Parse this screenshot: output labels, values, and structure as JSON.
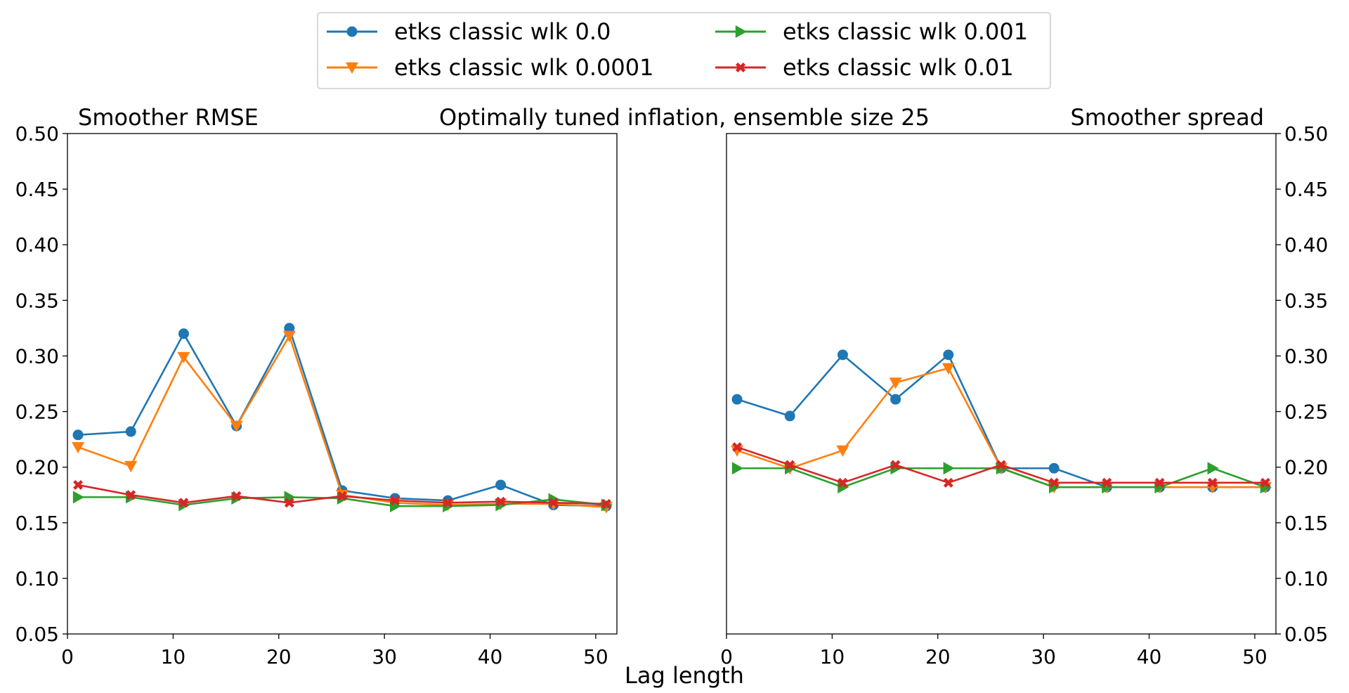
{
  "figure": {
    "suptitle": "Optimally tuned inflation, ensemble size 25",
    "xlabel": "Lag length"
  },
  "legend": {
    "placement": "top-center",
    "entries": [
      {
        "label": "etks classic wlk 0.0",
        "color": "#1f77b4",
        "marker": "circle"
      },
      {
        "label": "etks classic wlk 0.0001",
        "color": "#ff7f0e",
        "marker": "triangle-down"
      },
      {
        "label": "etks classic wlk 0.001",
        "color": "#2ca02c",
        "marker": "triangle-right"
      },
      {
        "label": "etks classic wlk 0.01",
        "color": "#d62728",
        "marker": "x"
      }
    ]
  },
  "chart_data": [
    {
      "type": "line",
      "title": "Smoother RMSE",
      "xlim": [
        0,
        52
      ],
      "ylim": [
        0.05,
        0.5
      ],
      "xticks": [
        0,
        10,
        20,
        30,
        40,
        50
      ],
      "yticks": [
        "0.05",
        "0.10",
        "0.15",
        "0.20",
        "0.25",
        "0.30",
        "0.35",
        "0.40",
        "0.45",
        "0.50"
      ],
      "yaxis_side": "left",
      "grid": false,
      "x": [
        1,
        6,
        11,
        16,
        21,
        26,
        31,
        36,
        41,
        46,
        51
      ],
      "series": [
        {
          "name": "etks classic wlk 0.0",
          "color": "#1f77b4",
          "marker": "circle",
          "values": [
            0.229,
            0.232,
            0.32,
            0.237,
            0.325,
            0.179,
            0.172,
            0.17,
            0.184,
            0.166,
            0.165
          ]
        },
        {
          "name": "etks classic wlk 0.0001",
          "color": "#ff7f0e",
          "marker": "triangle-down",
          "values": [
            0.218,
            0.201,
            0.299,
            0.237,
            0.318,
            0.175,
            0.168,
            0.166,
            0.167,
            0.167,
            0.164
          ]
        },
        {
          "name": "etks classic wlk 0.001",
          "color": "#2ca02c",
          "marker": "triangle-right",
          "values": [
            0.173,
            0.173,
            0.166,
            0.172,
            0.173,
            0.172,
            0.165,
            0.165,
            0.166,
            0.171,
            0.166
          ]
        },
        {
          "name": "etks classic wlk 0.01",
          "color": "#d62728",
          "marker": "x",
          "values": [
            0.184,
            0.175,
            0.168,
            0.174,
            0.168,
            0.174,
            0.17,
            0.168,
            0.169,
            0.168,
            0.167
          ]
        }
      ]
    },
    {
      "type": "line",
      "title": "Smoother spread",
      "xlim": [
        0,
        52
      ],
      "ylim": [
        0.05,
        0.5
      ],
      "xticks": [
        0,
        10,
        20,
        30,
        40,
        50
      ],
      "yticks": [
        "0.05",
        "0.10",
        "0.15",
        "0.20",
        "0.25",
        "0.30",
        "0.35",
        "0.40",
        "0.45",
        "0.50"
      ],
      "yaxis_side": "right",
      "grid": false,
      "x": [
        1,
        6,
        11,
        16,
        21,
        26,
        31,
        36,
        41,
        46,
        51
      ],
      "series": [
        {
          "name": "etks classic wlk 0.0",
          "color": "#1f77b4",
          "marker": "circle",
          "values": [
            0.261,
            0.246,
            0.301,
            0.261,
            0.301,
            0.199,
            0.199,
            0.182,
            0.182,
            0.182,
            0.182
          ]
        },
        {
          "name": "etks classic wlk 0.0001",
          "color": "#ff7f0e",
          "marker": "triangle-down",
          "values": [
            0.215,
            0.199,
            0.215,
            0.276,
            0.289,
            0.199,
            0.182,
            0.182,
            0.182,
            0.182,
            0.182
          ]
        },
        {
          "name": "etks classic wlk 0.001",
          "color": "#2ca02c",
          "marker": "triangle-right",
          "values": [
            0.199,
            0.199,
            0.182,
            0.199,
            0.199,
            0.199,
            0.182,
            0.182,
            0.182,
            0.199,
            0.182
          ]
        },
        {
          "name": "etks classic wlk 0.01",
          "color": "#d62728",
          "marker": "x",
          "values": [
            0.218,
            0.202,
            0.186,
            0.202,
            0.186,
            0.202,
            0.186,
            0.186,
            0.186,
            0.186,
            0.186
          ]
        }
      ]
    }
  ]
}
